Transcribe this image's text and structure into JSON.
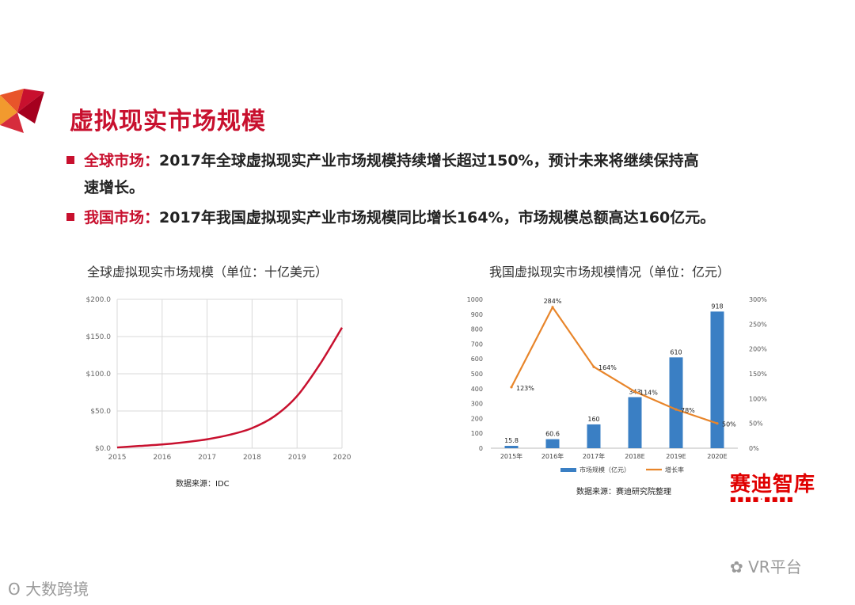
{
  "slide": {
    "title": "虚拟现实市场规模",
    "bullets": [
      {
        "label": "全球市场：",
        "text": "2017年全球虚拟现实产业市场规模持续增长超过150%，预计未来将继续保持高",
        "text2": "速增长。"
      },
      {
        "label": "我国市场：",
        "text": "2017年我国虚拟现实产业市场规模同比增长164%，市场规模总额高达160亿元。"
      }
    ]
  },
  "chart_data": [
    {
      "type": "line",
      "title": "全球虚拟现实市场规模（单位：十亿美元）",
      "x": [
        2015,
        2015.5,
        2016,
        2016.5,
        2017,
        2017.5,
        2018,
        2018.5,
        2019,
        2019.5,
        2020
      ],
      "series": [
        {
          "values": [
            1,
            3,
            5,
            8,
            12,
            18,
            27,
            43,
            70,
            112,
            162
          ]
        }
      ],
      "xticks": [
        "2015",
        "2016",
        "2017",
        "2018",
        "2019",
        "2020"
      ],
      "yticks": [
        "$0.0",
        "$50.0",
        "$100.0",
        "$150.0",
        "$200.0"
      ],
      "ylim": [
        0,
        200
      ],
      "grid": true,
      "line_color": "#c8102e",
      "source": "数据来源：IDC"
    },
    {
      "type": "bar",
      "title": "我国虚拟现实市场规模情况（单位：亿元）",
      "categories": [
        "2015年",
        "2016年",
        "2017年",
        "2018E",
        "2019E",
        "2020E"
      ],
      "series": [
        {
          "name": "市场规模（亿元）",
          "values": [
            15.8,
            60.6,
            160,
            343,
            610,
            918
          ],
          "labels": [
            "15.8",
            "60.6",
            "160",
            "343",
            "610",
            "918"
          ],
          "color": "#3a7fc4"
        },
        {
          "name": "增长率",
          "type": "line",
          "values": [
            123,
            284,
            164,
            114,
            78,
            50
          ],
          "labels": [
            "123%",
            "284%",
            "164%",
            "114%",
            "78%",
            "50%"
          ],
          "color": "#e8852a"
        }
      ],
      "ylim": [
        0,
        1000
      ],
      "y2lim": [
        0,
        300
      ],
      "yticks": [
        "0",
        "100",
        "200",
        "300",
        "400",
        "500",
        "600",
        "700",
        "800",
        "900",
        "1000"
      ],
      "y2ticks": [
        "0%",
        "50%",
        "100%",
        "150%",
        "200%",
        "250%",
        "300%"
      ],
      "legend": "bottom",
      "source": "数据来源：赛迪研究院整理"
    }
  ],
  "branding": {
    "publisher": "赛迪智库",
    "publisher_sub": "■■■■·■■■■",
    "watermark_left": "大数跨境",
    "watermark_right": "VR平台"
  },
  "colors": {
    "accent": "#c8102e",
    "bar": "#3a7fc4",
    "growth": "#e8852a"
  }
}
